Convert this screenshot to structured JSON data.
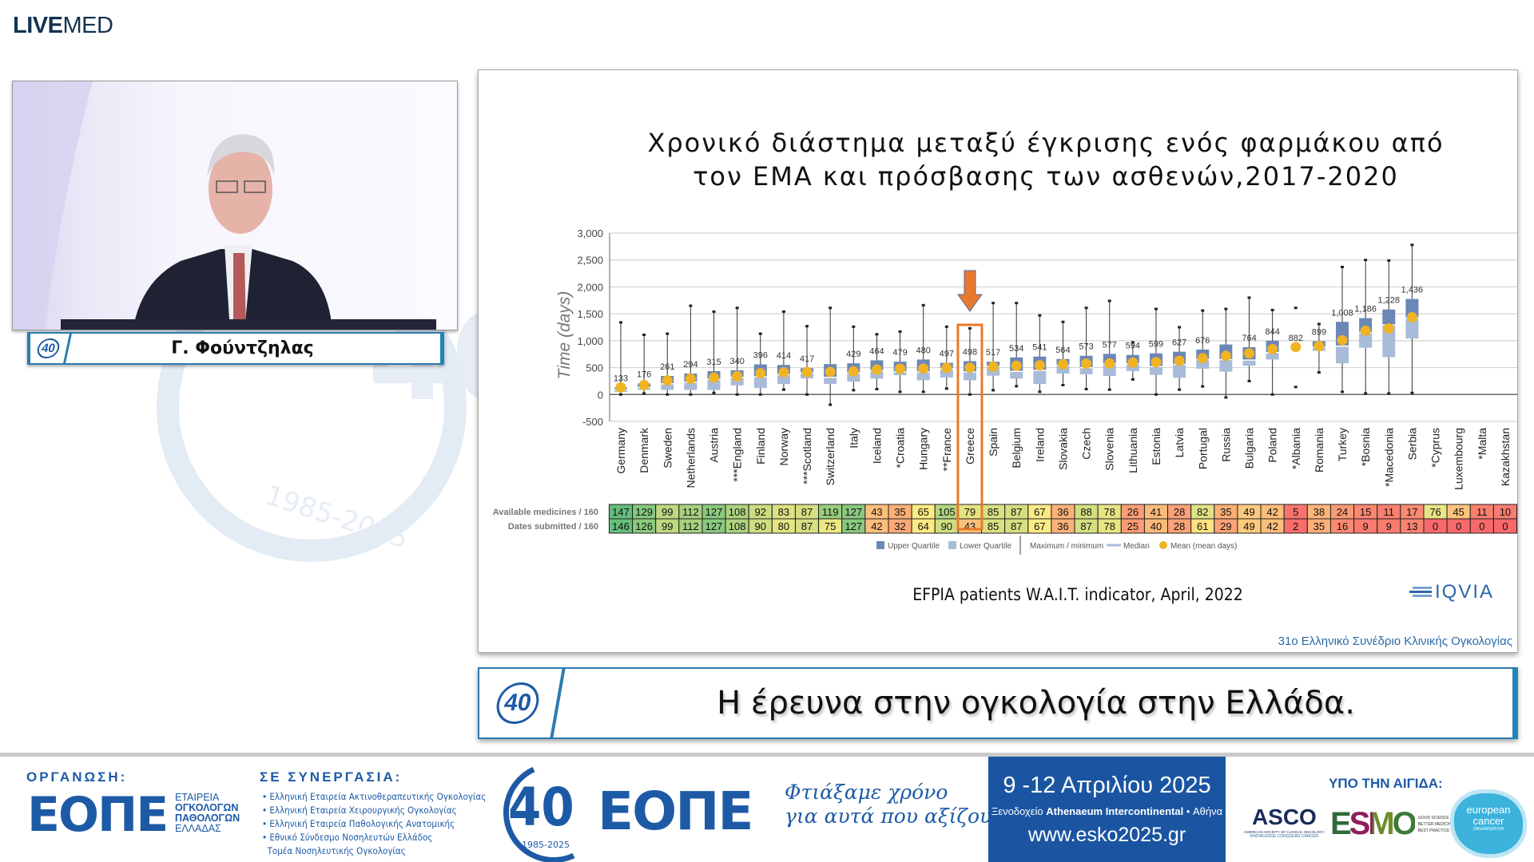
{
  "brand": {
    "bold": "LIVE",
    "thin": "MED"
  },
  "watermark": {
    "number": "40",
    "years": "1985-2025"
  },
  "speaker": {
    "name": "Γ. Φούντζηλας",
    "logo_text": "40"
  },
  "slide": {
    "title_line1": "Χρονικό διάστημα μεταξύ έγκρισης ενός φαρμάκου από",
    "title_line2": "τον ΕΜΑ και πρόσβασης των ασθενών,2017-2020",
    "source": "EFPIA patients W.A.I.T. indicator, April, 2022",
    "iqvia": "IQVIA",
    "conference": "31ο Ελληνικό Συνέδριο Κλινικής Ογκολογίας"
  },
  "session_title": "Η έρευνα στην ογκολογία στην Ελλάδα.",
  "footer": {
    "org_label": "ΟΡΓΑΝΩΣΗ:",
    "org_logo": "ΕΟΠΕ",
    "org_name": [
      "ΕΤΑΙΡΕΙΑ",
      "ΟΓΚΟΛΟΓΩΝ",
      "ΠΑΘΟΛΟΓΩΝ",
      "ΕΛΛΑΔΑΣ"
    ],
    "partners_label": "ΣΕ ΣΥΝΕΡΓΑΣΙΑ:",
    "partners": [
      "Ελληνική Εταιρεία Ακτινοθεραπευτικής Ογκολογίας",
      "Ελληνική Εταιρεία Χειρουργικής Ογκολογίας",
      "Ελληνική Εταιρεία Παθολογικής Ανατομικής",
      "Εθνικό Σύνδεσμο Νοσηλευτών Ελλάδος",
      "Τομέα Νοσηλευτικής Ογκολογίας"
    ],
    "anniv_number": "40",
    "anniv_years": "1985-2025",
    "anniv_logo": "ΕΟΠΕ",
    "slogan_line1": "Φτιάξαμε χρόνο",
    "slogan_line2": "για αυτά που αξίζουν",
    "dates": "9 -12 Απριλίου 2025",
    "venue_prefix": "Ξενοδοχείο",
    "venue": "Athenaeum Intercontinental",
    "city": "• Αθήνα",
    "website": "www.esko2025.gr",
    "auspices_label": "ΥΠΟ ΤΗΝ ΑΙΓΙΔΑ:",
    "asco": "ASCO",
    "asco_sub1": "AMERICAN SOCIETY OF CLINICAL ONCOLOGY",
    "asco_sub2": "KNOWLEDGE CONQUERS CANCER",
    "esmo": "ESMO",
    "esmo_tag": [
      "GOOD SCIENCE",
      "BETTER MEDICINE",
      "BEST PRACTICE"
    ],
    "eco": [
      "european",
      "cancer",
      "ORGANISATION"
    ]
  },
  "chart_data": {
    "type": "box",
    "ylabel": "Time (days)",
    "ylim": [
      -500,
      3000
    ],
    "yticks": [
      -500,
      0,
      500,
      1000,
      1500,
      2000,
      2500,
      3000
    ],
    "ytick_labels": [
      "-500",
      "0",
      "500",
      "1,000",
      "1,500",
      "2,000",
      "2,500",
      "3,000"
    ],
    "grid": true,
    "highlight": "Greece",
    "colors": {
      "upper": "#6b87b6",
      "lower": "#a8bbd8",
      "mean": "#f0b323",
      "highlight": "#e87a2c"
    },
    "legend": {
      "placement": "bottom",
      "items": [
        "Upper Quartile",
        "Lower Quartile",
        "Maximum / minimum",
        "Median",
        "Mean (mean days)"
      ]
    },
    "categories": [
      "Germany",
      "Denmark",
      "Sweden",
      "Netherlands",
      "Austria",
      "***England",
      "Finland",
      "Norway",
      "***Scotland",
      "Switzerland",
      "Italy",
      "Iceland",
      "*Croatia",
      "Hungary",
      "**France",
      "Greece",
      "Spain",
      "Belgium",
      "Ireland",
      "Slovakia",
      "Czech",
      "Slovenia",
      "Lithuania",
      "Estonia",
      "Latvia",
      "Portugal",
      "Russia",
      "Bulgaria",
      "Poland",
      "*Albania",
      "Romania",
      "Turkey",
      "*Bosnia",
      "*Macedonia",
      "Serbia",
      "*Cyprus",
      "Luxembourg",
      "*Malta",
      "Kazakhstan"
    ],
    "mean": [
      133,
      176,
      261,
      294,
      315,
      340,
      396,
      414,
      417,
      420,
      429,
      464,
      479,
      480,
      497,
      498,
      517,
      534,
      541,
      564,
      573,
      577,
      594,
      599,
      627,
      676,
      720,
      764,
      844,
      882,
      899,
      1008,
      1186,
      1228,
      1436,
      null,
      null,
      null,
      null
    ],
    "mean_labels": [
      "133",
      "176",
      "261",
      "294",
      "315",
      "340",
      "396",
      "414",
      "417",
      "",
      "429",
      "464",
      "479",
      "480",
      "497",
      "498",
      "517",
      "534",
      "541",
      "564",
      "573",
      "577",
      "594",
      "599",
      "627",
      "676",
      "",
      "764",
      "844",
      "882",
      "899",
      "1,008",
      "1,186",
      "1,228",
      "1,436",
      "",
      "",
      "",
      ""
    ],
    "q1": [
      50,
      85,
      85,
      85,
      85,
      170,
      120,
      195,
      300,
      195,
      240,
      295,
      360,
      265,
      315,
      265,
      350,
      295,
      195,
      390,
      375,
      345,
      435,
      365,
      310,
      480,
      425,
      535,
      650,
      null,
      810,
      580,
      870,
      695,
      1040,
      null,
      null,
      null,
      null
    ],
    "median": [
      90,
      130,
      200,
      230,
      280,
      320,
      330,
      370,
      400,
      320,
      400,
      440,
      420,
      420,
      480,
      420,
      520,
      430,
      450,
      540,
      500,
      570,
      570,
      520,
      560,
      650,
      650,
      640,
      780,
      null,
      880,
      900,
      1150,
      1290,
      1420,
      null,
      null,
      null,
      null
    ],
    "q3": [
      130,
      205,
      345,
      390,
      435,
      450,
      560,
      550,
      490,
      565,
      580,
      635,
      610,
      650,
      590,
      620,
      610,
      690,
      705,
      660,
      720,
      755,
      735,
      765,
      795,
      835,
      930,
      880,
      1000,
      null,
      990,
      1350,
      1420,
      1580,
      1775,
      null,
      null,
      null,
      null
    ],
    "min": [
      0,
      20,
      0,
      0,
      30,
      0,
      0,
      90,
      0,
      -190,
      80,
      100,
      50,
      50,
      110,
      0,
      80,
      155,
      50,
      175,
      100,
      90,
      280,
      0,
      90,
      150,
      -55,
      250,
      0,
      140,
      410,
      50,
      20,
      20,
      30,
      null,
      null,
      null,
      null
    ],
    "max": [
      1340,
      1110,
      1130,
      1650,
      1540,
      1610,
      1130,
      1540,
      1270,
      1610,
      1260,
      1120,
      1170,
      1660,
      1260,
      1230,
      1700,
      1700,
      1470,
      1350,
      1610,
      1740,
      970,
      1590,
      1250,
      1560,
      1590,
      1800,
      1570,
      1610,
      1310,
      2370,
      2500,
      2490,
      2780,
      null,
      null,
      null,
      null
    ],
    "table": {
      "rows": [
        {
          "label": "Available medicines / 160",
          "values": [
            147,
            129,
            99,
            112,
            127,
            108,
            92,
            83,
            87,
            119,
            127,
            43,
            35,
            65,
            105,
            79,
            85,
            87,
            67,
            36,
            88,
            78,
            26,
            41,
            28,
            82,
            35,
            49,
            42,
            5,
            38,
            24,
            15,
            11,
            17,
            76,
            45,
            11,
            10
          ]
        },
        {
          "label": "Dates submitted / 160",
          "values": [
            146,
            126,
            99,
            112,
            127,
            108,
            90,
            80,
            87,
            75,
            127,
            42,
            32,
            64,
            90,
            43,
            85,
            87,
            67,
            36,
            87,
            78,
            25,
            40,
            28,
            61,
            29,
            49,
            42,
            2,
            35,
            16,
            9,
            9,
            13,
            0,
            0,
            0,
            0
          ]
        }
      ],
      "scale_colors": {
        "low": "#f8696b",
        "mid": "#ffeb84",
        "high": "#63be7b"
      }
    }
  }
}
